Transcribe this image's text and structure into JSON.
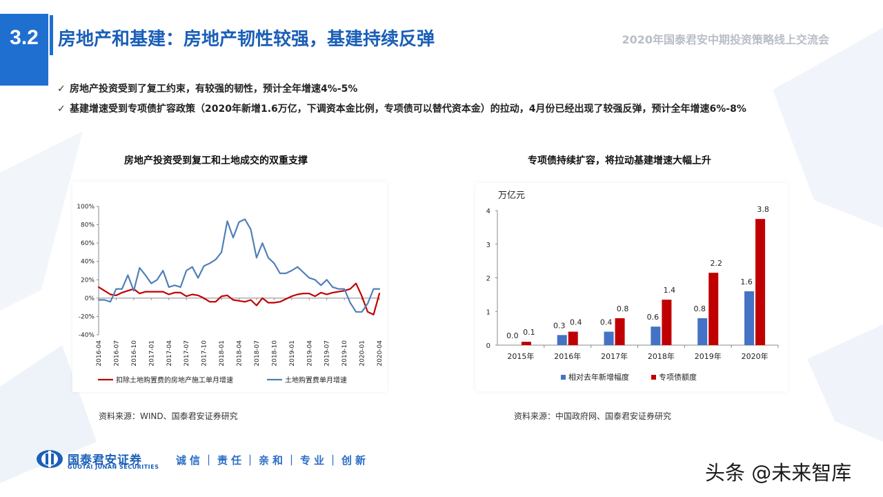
{
  "header": {
    "section_number": "3.2",
    "title": "房地产和基建：房地产韧性较强，基建持续反弹",
    "event": "2020年国泰君安中期投资策略线上交流会"
  },
  "bullets": [
    {
      "icon": "check-icon",
      "text": "房地产投资受到了复工约束，有较强的韧性，预计全年增速4%-5%"
    },
    {
      "icon": "check-icon",
      "text": "基建增速受到专项债扩容政策（2020年新增1.6万亿，下调资本金比例，专项债可以替代资本金）的拉动，4月份已经出现了较强反弹，预计全年增速6%-8%"
    }
  ],
  "charts": {
    "left": {
      "title": "房地产投资受到复工和土地成交的双重支撑",
      "source": "资料来源：WIND、国泰君安证券研究"
    },
    "right": {
      "title": "专项债持续扩容，将拉动基建增速大幅上升",
      "source": "资料来源：中国政府网、国泰君安证券研究"
    }
  },
  "chart_data": [
    {
      "type": "line",
      "title": "房地产投资受到复工和土地成交的双重支撑",
      "x_ticks": [
        "2016-04",
        "2016-07",
        "2016-10",
        "2017-01",
        "2017-04",
        "2017-07",
        "2017-10",
        "2018-01",
        "2018-04",
        "2018-07",
        "2018-10",
        "2019-01",
        "2019-04",
        "2019-07",
        "2019-10",
        "2020-01",
        "2020-04"
      ],
      "y_ticks": [
        "100%",
        "80%",
        "60%",
        "40%",
        "20%",
        "0%",
        "-20%",
        "-40%"
      ],
      "ylim": [
        -40,
        100
      ],
      "legend": "bottom",
      "series": [
        {
          "name": "扣除土地购置费的房地产施工单月增速",
          "color": "#c00000",
          "x": [
            "2016-04",
            "2016-05",
            "2016-06",
            "2016-07",
            "2016-08",
            "2016-09",
            "2016-10",
            "2016-11",
            "2016-12",
            "2017-01",
            "2017-02",
            "2017-03",
            "2017-04",
            "2017-05",
            "2017-06",
            "2017-07",
            "2017-08",
            "2017-09",
            "2017-10",
            "2017-11",
            "2017-12",
            "2018-01",
            "2018-02",
            "2018-03",
            "2018-04",
            "2018-05",
            "2018-06",
            "2018-07",
            "2018-08",
            "2018-09",
            "2018-10",
            "2018-11",
            "2018-12",
            "2019-01",
            "2019-02",
            "2019-03",
            "2019-04",
            "2019-05",
            "2019-06",
            "2019-07",
            "2019-08",
            "2019-09",
            "2019-10",
            "2019-11",
            "2019-12",
            "2020-01",
            "2020-02",
            "2020-03",
            "2020-04"
          ],
          "values": [
            12,
            8,
            4,
            3,
            6,
            8,
            10,
            5,
            7,
            7,
            7,
            7,
            4,
            6,
            6,
            2,
            4,
            3,
            0,
            -4,
            -4,
            2,
            3,
            -2,
            -3,
            -4,
            -2,
            -8,
            0,
            -5,
            -5,
            -4,
            -1,
            2,
            4,
            5,
            5,
            2,
            6,
            4,
            6,
            7,
            8,
            10,
            16,
            2,
            -15,
            -18,
            5
          ]
        },
        {
          "name": "土地购置费单月增速",
          "color": "#4f7fb8",
          "x": [
            "2016-04",
            "2016-05",
            "2016-06",
            "2016-07",
            "2016-08",
            "2016-09",
            "2016-10",
            "2016-11",
            "2016-12",
            "2017-01",
            "2017-02",
            "2017-03",
            "2017-04",
            "2017-05",
            "2017-06",
            "2017-07",
            "2017-08",
            "2017-09",
            "2017-10",
            "2017-11",
            "2017-12",
            "2018-01",
            "2018-02",
            "2018-03",
            "2018-04",
            "2018-05",
            "2018-06",
            "2018-07",
            "2018-08",
            "2018-09",
            "2018-10",
            "2018-11",
            "2018-12",
            "2019-01",
            "2019-02",
            "2019-03",
            "2019-04",
            "2019-05",
            "2019-06",
            "2019-07",
            "2019-08",
            "2019-09",
            "2019-10",
            "2019-11",
            "2019-12",
            "2020-01",
            "2020-02",
            "2020-03",
            "2020-04"
          ],
          "values": [
            -2,
            -2,
            -4,
            10,
            10,
            25,
            8,
            33,
            25,
            16,
            20,
            30,
            12,
            14,
            12,
            30,
            34,
            22,
            35,
            38,
            42,
            50,
            84,
            66,
            83,
            86,
            75,
            44,
            60,
            44,
            38,
            27,
            27,
            30,
            34,
            28,
            22,
            20,
            14,
            20,
            12,
            10,
            10,
            -5,
            -15,
            -15,
            -6,
            10,
            10
          ]
        }
      ]
    },
    {
      "type": "bar",
      "title": "专项债持续扩容，将拉动基建增速大幅上升",
      "ylabel": "万亿元",
      "categories": [
        "2015年",
        "2016年",
        "2017年",
        "2018年",
        "2019年",
        "2020年"
      ],
      "ylim": [
        0,
        4
      ],
      "y_ticks": [
        "0",
        "1",
        "2",
        "3",
        "4"
      ],
      "legend": "bottom",
      "series": [
        {
          "name": "相对去年新增幅度",
          "color": "#4472c4",
          "values": [
            0.0,
            0.3,
            0.4,
            0.6,
            0.8,
            1.6
          ],
          "labels": [
            "0.0",
            "0.3",
            "0.4",
            "0.6",
            "0.8",
            "1.6"
          ],
          "bar_values": [
            0.0,
            0.3,
            0.4,
            0.55,
            0.8,
            1.6
          ]
        },
        {
          "name": "专项债额度",
          "color": "#c00000",
          "values": [
            0.1,
            0.4,
            0.8,
            1.4,
            2.2,
            3.8
          ],
          "labels": [
            "0.1",
            "0.4",
            "0.8",
            "1.4",
            "2.2",
            "3.8"
          ],
          "bar_values": [
            0.1,
            0.4,
            0.8,
            1.35,
            2.15,
            3.75
          ]
        }
      ]
    }
  ],
  "footer": {
    "company": "国泰君安证券",
    "company_en": "GUOTAI JUNAN SECURITIES",
    "motto": "诚信｜责任｜亲和｜专业｜创新",
    "watermark": "头条 @未来智库"
  }
}
